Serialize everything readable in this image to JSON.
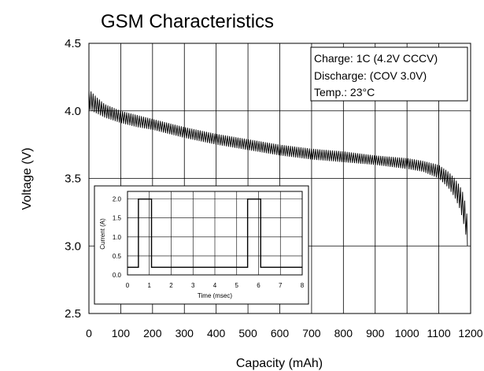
{
  "chart_data": {
    "type": "line",
    "title": "GSM Characteristics",
    "xlabel": "Capacity (mAh)",
    "ylabel": "Voltage (V)",
    "xlim": [
      0,
      1200
    ],
    "ylim": [
      2.5,
      4.5
    ],
    "x_ticks": [
      "0",
      "100",
      "200",
      "300",
      "400",
      "500",
      "600",
      "700",
      "800",
      "900",
      "1000",
      "1100",
      "1200"
    ],
    "y_ticks": [
      "2.5",
      "3.0",
      "3.5",
      "4.0",
      "4.5"
    ],
    "grid": true,
    "series_color": "#000000",
    "series": [
      {
        "points": [
          {
            "x": 0,
            "y_high": 4.16,
            "y_low": 4.01
          },
          {
            "x": 25,
            "y_high": 4.1,
            "y_low": 3.98
          },
          {
            "x": 50,
            "y_high": 4.05,
            "y_low": 3.95
          },
          {
            "x": 100,
            "y_high": 4.0,
            "y_low": 3.91
          },
          {
            "x": 150,
            "y_high": 3.97,
            "y_low": 3.88
          },
          {
            "x": 200,
            "y_high": 3.94,
            "y_low": 3.86
          },
          {
            "x": 300,
            "y_high": 3.88,
            "y_low": 3.8
          },
          {
            "x": 400,
            "y_high": 3.83,
            "y_low": 3.75
          },
          {
            "x": 500,
            "y_high": 3.79,
            "y_low": 3.71
          },
          {
            "x": 600,
            "y_high": 3.75,
            "y_low": 3.67
          },
          {
            "x": 700,
            "y_high": 3.72,
            "y_low": 3.64
          },
          {
            "x": 800,
            "y_high": 3.7,
            "y_low": 3.62
          },
          {
            "x": 900,
            "y_high": 3.67,
            "y_low": 3.6
          },
          {
            "x": 1000,
            "y_high": 3.65,
            "y_low": 3.57
          },
          {
            "x": 1050,
            "y_high": 3.63,
            "y_low": 3.55
          },
          {
            "x": 1100,
            "y_high": 3.6,
            "y_low": 3.5
          },
          {
            "x": 1130,
            "y_high": 3.55,
            "y_low": 3.43
          },
          {
            "x": 1150,
            "y_high": 3.5,
            "y_low": 3.36
          },
          {
            "x": 1165,
            "y_high": 3.45,
            "y_low": 3.28
          },
          {
            "x": 1175,
            "y_high": 3.4,
            "y_low": 3.2
          },
          {
            "x": 1185,
            "y_high": 3.3,
            "y_low": 3.08
          },
          {
            "x": 1190,
            "y_high": 3.2,
            "y_low": 3.0
          }
        ]
      }
    ],
    "annotation": {
      "lines": [
        "Charge: 1C (4.2V CCCV)",
        "Discharge: (COV 3.0V)",
        "Temp.: 23°C"
      ],
      "placement": "top-right"
    },
    "inset": {
      "type": "line",
      "xlabel": "Time (msec)",
      "ylabel": "Current (A)",
      "xlim": [
        0,
        8
      ],
      "ylim": [
        0,
        2.2
      ],
      "x_ticks": [
        "0",
        "1",
        "2",
        "3",
        "4",
        "5",
        "6",
        "7",
        "8"
      ],
      "y_ticks": [
        "0.0",
        "0.5",
        "1.0",
        "1.5",
        "2.0"
      ],
      "placement": "bottom-left",
      "x": [
        0,
        0.5,
        0.5,
        1.1,
        1.1,
        5.5,
        5.5,
        6.1,
        6.1,
        8
      ],
      "y": [
        0.2,
        0.2,
        2.0,
        2.0,
        0.2,
        0.2,
        2.0,
        2.0,
        0.2,
        0.2
      ]
    }
  }
}
